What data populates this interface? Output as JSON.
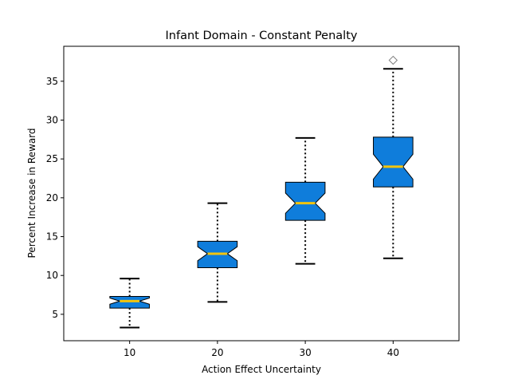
{
  "chart_data": {
    "type": "boxplot",
    "title": "Infant Domain - Constant Penalty",
    "xlabel": "Action Effect Uncertainty",
    "ylabel": "Percent Increase in Reward",
    "ylim": [
      1.6,
      39.5
    ],
    "yticks": [
      5,
      10,
      15,
      20,
      25,
      30,
      35
    ],
    "grid": false,
    "notched": true,
    "colors": {
      "box_fill": "#0f7ddb",
      "median": "#f2c40e",
      "outline": "#000000",
      "flier": "#808080"
    },
    "categories": [
      "10",
      "20",
      "30",
      "40"
    ],
    "boxes": [
      {
        "category": "10",
        "whisker_low": 3.3,
        "q1": 5.8,
        "median": 6.7,
        "q3": 7.3,
        "whisker_high": 9.6,
        "notch_low": 6.3,
        "notch_high": 7.1,
        "fliers": []
      },
      {
        "category": "20",
        "whisker_low": 6.6,
        "q1": 11.0,
        "median": 12.8,
        "q3": 14.4,
        "whisker_high": 19.3,
        "notch_low": 11.9,
        "notch_high": 13.7,
        "fliers": []
      },
      {
        "category": "30",
        "whisker_low": 11.5,
        "q1": 17.1,
        "median": 19.3,
        "q3": 22.0,
        "whisker_high": 27.7,
        "notch_low": 18.0,
        "notch_high": 20.6,
        "fliers": []
      },
      {
        "category": "40",
        "whisker_low": 12.2,
        "q1": 21.4,
        "median": 24.0,
        "q3": 27.8,
        "whisker_high": 36.6,
        "notch_low": 22.4,
        "notch_high": 25.6,
        "fliers": [
          37.7
        ]
      }
    ]
  }
}
